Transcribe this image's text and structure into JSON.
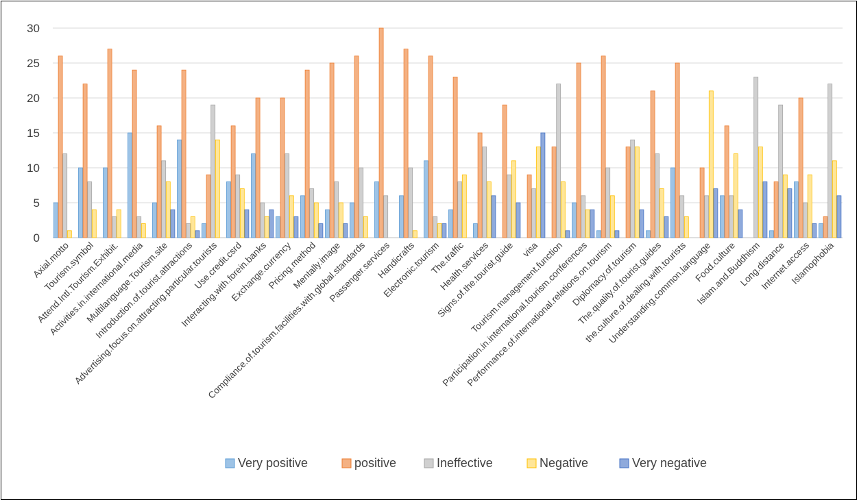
{
  "chart_data": {
    "type": "bar",
    "ylim": [
      0,
      30
    ],
    "yticks": [
      0,
      5,
      10,
      15,
      20,
      25,
      30
    ],
    "grid": true,
    "legend_position": "bottom",
    "categories": [
      "Axial.motto",
      "Tourism.symbol",
      "Attend.Intl.Tourism.Exhibit.",
      "Activities.in.international.media",
      "Multilanguage.Tourism.site",
      "Introduction.of.tourist.attractions",
      "Advertising.focus.on.attracting.particular.tourists",
      "Use.credit.csrd",
      "Interacting.with.forein.banks",
      "Exchange.currency",
      "Pricing.method",
      "Mentally.image",
      "Compliance.of.tourism.facilities.with.global.standards",
      "Passenger.services",
      "Handicrafts",
      "Electronic.tourism",
      "The.traffic",
      "Health.services",
      "Signs.of.the.tourist.guide",
      "visa",
      "Tourism.management.function",
      "Participation.in.international.tourism.conferences",
      "Performance.of.international.relations.on.tourism",
      "Diplomacy.of.tourism",
      "The.quality.of.tourist.guides",
      "the.culture.of.dealing.with.tourists",
      "Understanding.common.language",
      "Food.culture",
      "Islam.and.Buddhism",
      "Long.distance",
      "Internet.access",
      "Islamophobia"
    ],
    "series": [
      {
        "name": "Very positive",
        "color": "#9DC3E6",
        "stroke": "#5B9BD5",
        "values": [
          5,
          10,
          10,
          15,
          5,
          14,
          2,
          8,
          12,
          3,
          6,
          4,
          5,
          8,
          6,
          11,
          4,
          2,
          0,
          0,
          0,
          5,
          1,
          0,
          1,
          10,
          0,
          6,
          0,
          1,
          8,
          2
        ]
      },
      {
        "name": "positive",
        "color": "#F4B183",
        "stroke": "#ED7D31",
        "values": [
          26,
          22,
          27,
          24,
          16,
          24,
          9,
          16,
          20,
          20,
          24,
          25,
          26,
          30,
          27,
          26,
          23,
          15,
          19,
          9,
          13,
          25,
          26,
          13,
          21,
          25,
          10,
          16,
          0,
          8,
          20,
          3
        ]
      },
      {
        "name": "Ineffective",
        "color": "#D0D0D0",
        "stroke": "#A5A5A5",
        "values": [
          12,
          8,
          3,
          3,
          11,
          2,
          19,
          9,
          5,
          12,
          7,
          8,
          10,
          6,
          10,
          3,
          8,
          13,
          9,
          7,
          22,
          6,
          10,
          14,
          12,
          6,
          6,
          6,
          23,
          19,
          5,
          22
        ]
      },
      {
        "name": "Negative",
        "color": "#FFE699",
        "stroke": "#FFC000",
        "values": [
          1,
          4,
          4,
          2,
          8,
          3,
          14,
          7,
          3,
          6,
          5,
          5,
          3,
          0,
          1,
          2,
          9,
          8,
          11,
          13,
          8,
          4,
          6,
          13,
          7,
          3,
          21,
          12,
          13,
          9,
          9,
          11
        ]
      },
      {
        "name": "Very negative",
        "color": "#8FAADC",
        "stroke": "#4472C4",
        "values": [
          0,
          0,
          0,
          0,
          4,
          1,
          0,
          4,
          4,
          3,
          2,
          2,
          0,
          0,
          0,
          2,
          0,
          6,
          5,
          15,
          1,
          4,
          1,
          4,
          3,
          0,
          7,
          4,
          8,
          7,
          2,
          6
        ]
      }
    ]
  }
}
